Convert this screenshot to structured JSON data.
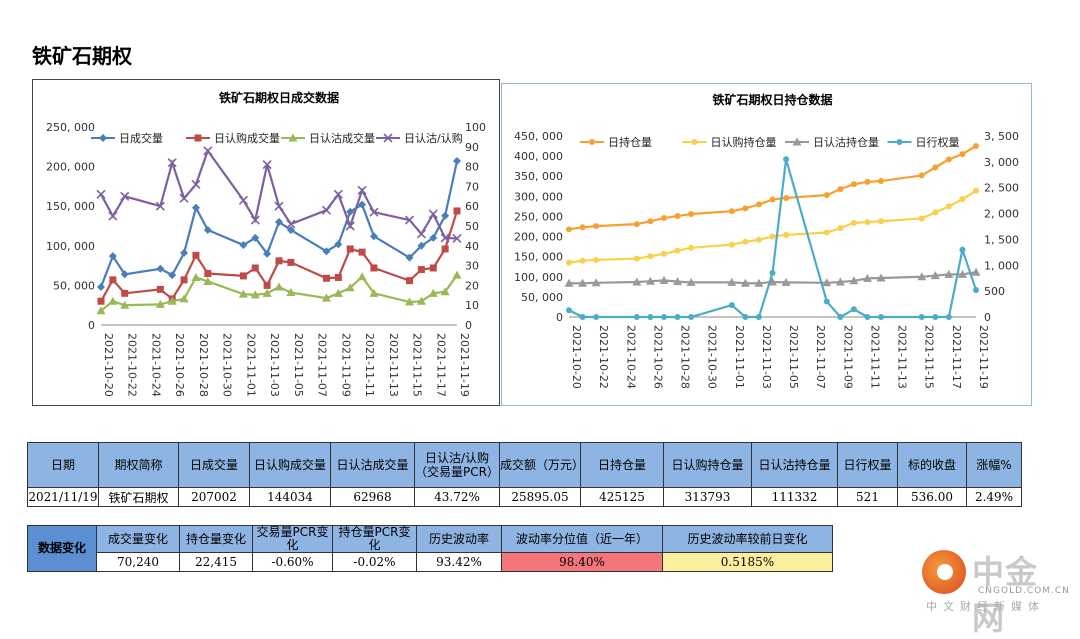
{
  "page": {
    "title": "铁矿石期权"
  },
  "chart_data": [
    {
      "type": "line",
      "title": "铁矿石期权日成交数据",
      "x": [
        "2021-10-20",
        "2021-10-21",
        "2021-10-22",
        "2021-10-25",
        "2021-10-26",
        "2021-10-27",
        "2021-10-28",
        "2021-10-29",
        "2021-11-01",
        "2021-11-02",
        "2021-11-03",
        "2021-11-04",
        "2021-11-05",
        "2021-11-08",
        "2021-11-09",
        "2021-11-10",
        "2021-11-11",
        "2021-11-12",
        "2021-11-15",
        "2021-11-16",
        "2021-11-17",
        "2021-11-18",
        "2021-11-19"
      ],
      "x_tick_labels": [
        "2021-10-20",
        "2021-10-22",
        "2021-10-24",
        "2021-10-26",
        "2021-10-28",
        "2021-10-30",
        "2021-11-01",
        "2021-11-03",
        "2021-11-05",
        "2021-11-07",
        "2021-11-09",
        "2021-11-11",
        "2021-11-13",
        "2021-11-15",
        "2021-11-17",
        "2021-11-19"
      ],
      "y_ticks_left": [
        "0",
        "50, 000",
        "100, 000",
        "150, 000",
        "200, 000",
        "250, 000"
      ],
      "y_ticks_right": [
        "0",
        "10",
        "20",
        "30",
        "40",
        "50",
        "60",
        "70",
        "80",
        "90",
        "100"
      ],
      "ylim_left": [
        0,
        250000
      ],
      "ylim_right": [
        0,
        100
      ],
      "series": [
        {
          "name": "日成交量",
          "axis": "left",
          "color": "#4a7ebb",
          "marker": "diamond",
          "values": [
            48000,
            87000,
            64000,
            71000,
            63000,
            91000,
            148000,
            120000,
            101000,
            110000,
            90000,
            130000,
            120000,
            93000,
            102000,
            143000,
            152000,
            112000,
            85000,
            100000,
            110000,
            138000,
            207002
          ]
        },
        {
          "name": "日认购成交量",
          "axis": "left",
          "color": "#be4b48",
          "marker": "square",
          "values": [
            30000,
            57000,
            40000,
            45000,
            33000,
            57000,
            88000,
            65000,
            62000,
            72000,
            50000,
            81000,
            79000,
            59000,
            60000,
            96000,
            92000,
            72000,
            56000,
            70000,
            72000,
            96000,
            144034
          ]
        },
        {
          "name": "日认沽成交量",
          "axis": "left",
          "color": "#98b954",
          "marker": "triangle",
          "values": [
            18000,
            30000,
            25000,
            26000,
            30000,
            33000,
            60000,
            55000,
            39000,
            38000,
            40000,
            48000,
            41000,
            34000,
            40000,
            47000,
            61000,
            40000,
            29000,
            30000,
            40000,
            42000,
            62968
          ]
        },
        {
          "name": "日认沽/认购",
          "axis": "right",
          "color": "#7d60a0",
          "marker": "x",
          "values": [
            66,
            55,
            65,
            60,
            82,
            64,
            71,
            88,
            63,
            53,
            81,
            60,
            51,
            58,
            66,
            50,
            68,
            57,
            53,
            46,
            56,
            44,
            43.72
          ]
        }
      ]
    },
    {
      "type": "line",
      "title": "铁矿石期权日持仓数据",
      "x": [
        "2021-10-20",
        "2021-10-21",
        "2021-10-22",
        "2021-10-25",
        "2021-10-26",
        "2021-10-27",
        "2021-10-28",
        "2021-10-29",
        "2021-11-01",
        "2021-11-02",
        "2021-11-03",
        "2021-11-04",
        "2021-11-05",
        "2021-11-08",
        "2021-11-09",
        "2021-11-10",
        "2021-11-11",
        "2021-11-12",
        "2021-11-15",
        "2021-11-16",
        "2021-11-17",
        "2021-11-18",
        "2021-11-19"
      ],
      "x_tick_labels": [
        "2021-10-20",
        "2021-10-22",
        "2021-10-24",
        "2021-10-26",
        "2021-10-28",
        "2021-10-30",
        "2021-11-01",
        "2021-11-03",
        "2021-11-05",
        "2021-11-07",
        "2021-11-09",
        "2021-11-11",
        "2021-11-13",
        "2021-11-15",
        "2021-11-17",
        "2021-11-19"
      ],
      "y_ticks_left": [
        "0",
        "50, 000",
        "100, 000",
        "150, 000",
        "200, 000",
        "250, 000",
        "300, 000",
        "350, 000",
        "400, 000",
        "450, 000"
      ],
      "y_ticks_right": [
        "0",
        "500",
        "1, 000",
        "1, 500",
        "2, 000",
        "2, 500",
        "3, 000",
        "3, 500"
      ],
      "ylim_left": [
        0,
        450000
      ],
      "ylim_right": [
        0,
        3500
      ],
      "series": [
        {
          "name": "日持仓量",
          "axis": "left",
          "color": "#f7a032",
          "marker": "circle",
          "values": [
            218000,
            223000,
            226000,
            231000,
            238000,
            246000,
            251000,
            256000,
            263000,
            270000,
            280000,
            292000,
            296000,
            303000,
            318000,
            330000,
            336000,
            338000,
            352000,
            372000,
            392000,
            405000,
            425125
          ]
        },
        {
          "name": "日认购持仓量",
          "axis": "left",
          "color": "#f8d04a",
          "marker": "circle",
          "values": [
            135000,
            140000,
            142000,
            145000,
            151000,
            157000,
            165000,
            172000,
            180000,
            187000,
            192000,
            200000,
            204000,
            210000,
            221000,
            234000,
            236000,
            238000,
            245000,
            260000,
            275000,
            293000,
            313793
          ]
        },
        {
          "name": "日认沽持仓量",
          "axis": "left",
          "color": "#999999",
          "marker": "triangle",
          "values": [
            84000,
            84000,
            85000,
            87000,
            89000,
            91000,
            88000,
            86000,
            86000,
            84000,
            84000,
            87000,
            86000,
            85000,
            87000,
            90000,
            96000,
            97000,
            100000,
            103000,
            106000,
            106000,
            111332
          ]
        },
        {
          "name": "日行权量",
          "axis": "right",
          "color": "#4bacc6",
          "marker": "circle",
          "values": [
            130,
            0,
            0,
            0,
            0,
            0,
            0,
            0,
            230,
            0,
            0,
            850,
            3050,
            300,
            0,
            150,
            0,
            0,
            0,
            0,
            0,
            1300,
            521
          ]
        }
      ]
    }
  ],
  "table1": {
    "headers": [
      "日期",
      "期权简称",
      "日成交量",
      "日认购成交量",
      "日认沽成交量",
      "日认沽/认购（交易量PCR）",
      "成交额（万元）",
      "日持仓量",
      "日认购持仓量",
      "日认沽持仓量",
      "日行权量",
      "标的收盘",
      "涨幅%"
    ],
    "values": [
      "2021/11/19",
      "铁矿石期权",
      "207002",
      "144034",
      "62968",
      "43.72%",
      "25895.05",
      "425125",
      "313793",
      "111332",
      "521",
      "536.00",
      "2.49%"
    ]
  },
  "table2": {
    "side_label": "数据变化",
    "headers": [
      "成交量变化",
      "持仓量变化",
      "交易量PCR变化",
      "持仓量PCR变化",
      "历史波动率",
      "波动率分位值（近一年）",
      "历史波动率较前日变化"
    ],
    "values": [
      "70,240",
      "22,415",
      "-0.60%",
      "-0.02%",
      "93.42%",
      "98.40%",
      "0.5185%"
    ]
  },
  "logo": {
    "cn": "中金网",
    "url": "CNGOLD.COM.CN",
    "sub": "中文财经新媒体"
  }
}
